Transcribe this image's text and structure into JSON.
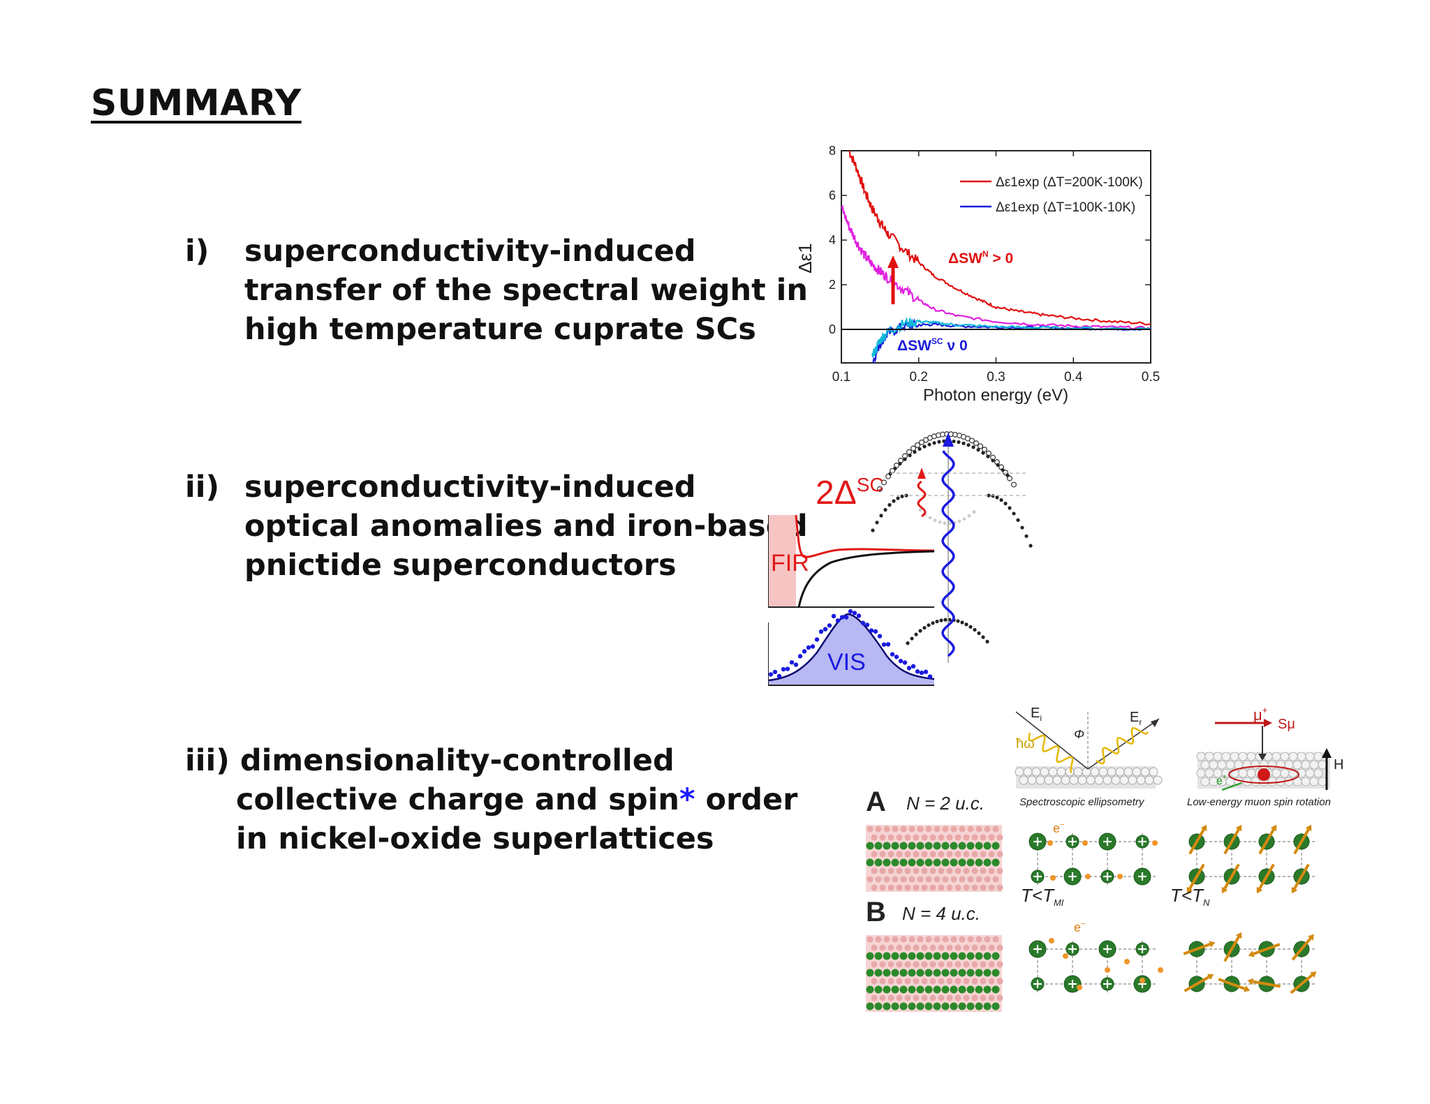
{
  "slide": {
    "title": "SUMMARY",
    "items": [
      {
        "marker": "i)",
        "lines": [
          "superconductivity-induced",
          "transfer of the spectral weight in",
          "high temperature cuprate SCs"
        ]
      },
      {
        "marker": "ii)",
        "lines": [
          "superconductivity-induced",
          "optical anomalies and iron-based",
          "pnictide superconductors"
        ]
      },
      {
        "marker": "iii)",
        "lines": [
          "dimensionality-controlled",
          "collective charge and spin",
          "order",
          "in nickel-oxide superlattices"
        ],
        "footnote_mark": "*"
      }
    ]
  },
  "chart_data": {
    "type": "line",
    "xlabel": "Photon energy (eV)",
    "ylabel": "Δε1",
    "xlim": [
      0.1,
      0.5
    ],
    "ylim": [
      -1.5,
      8
    ],
    "x_ticks": [
      "0.1",
      "0.2",
      "0.3",
      "0.4",
      "0.5"
    ],
    "y_ticks": [
      "0",
      "2",
      "4",
      "6",
      "8"
    ],
    "legend_placement": "top-right",
    "series": [
      {
        "name": "Δε1exp (ΔT=200K-100K)",
        "color": "#e01010",
        "x": [
          0.11,
          0.12,
          0.13,
          0.14,
          0.15,
          0.16,
          0.18,
          0.2,
          0.22,
          0.25,
          0.28,
          0.3,
          0.33,
          0.36,
          0.4,
          0.45,
          0.5
        ],
        "y": [
          8.0,
          7.2,
          6.2,
          5.4,
          4.8,
          4.3,
          3.6,
          3.0,
          2.4,
          1.8,
          1.3,
          1.0,
          0.8,
          0.65,
          0.5,
          0.35,
          0.25
        ]
      },
      {
        "name": "Δε1exp (ΔT=100K-10K)",
        "color": "#1a1adc",
        "x": [
          0.14,
          0.15,
          0.16,
          0.18,
          0.2,
          0.22,
          0.25,
          0.3,
          0.35,
          0.4,
          0.45,
          0.5
        ],
        "y": [
          -1.5,
          -0.6,
          -0.2,
          0.15,
          0.2,
          0.22,
          0.15,
          0.1,
          0.08,
          0.05,
          0.03,
          0.02
        ]
      },
      {
        "color": "#e020e0",
        "x": [
          0.1,
          0.11,
          0.12,
          0.13,
          0.14,
          0.15,
          0.16,
          0.18,
          0.2,
          0.22,
          0.25,
          0.3,
          0.35,
          0.4,
          0.45,
          0.5
        ],
        "y": [
          5.5,
          4.6,
          3.9,
          3.3,
          2.9,
          2.6,
          2.3,
          1.8,
          1.3,
          0.9,
          0.6,
          0.35,
          0.22,
          0.15,
          0.1,
          0.06
        ]
      },
      {
        "color": "#10b8d8",
        "x": [
          0.14,
          0.15,
          0.16,
          0.18,
          0.2,
          0.22,
          0.25,
          0.3,
          0.35,
          0.4,
          0.5
        ],
        "y": [
          -1.2,
          -0.5,
          -0.1,
          0.25,
          0.35,
          0.3,
          0.2,
          0.12,
          0.08,
          0.05,
          0.03
        ]
      }
    ],
    "annotations": [
      {
        "text_main": "ΔSW",
        "text_sup": "N",
        "text_tail": " > 0",
        "color": "#e01010"
      },
      {
        "text_main": "ΔSW",
        "text_sup": "SC",
        "text_tail": " ν 0",
        "color": "#1a1adc"
      }
    ]
  },
  "figure2": {
    "gap_label": "2Δ",
    "gap_sup": "SC",
    "fir_label": "FIR",
    "vis_label": "VIS",
    "colors": {
      "red": "#e01818",
      "blue": "#1a1ae0",
      "fir_fill": "#f7c4c4",
      "vis_fill": "#b8b8f4"
    }
  },
  "figure3": {
    "panel_a": "A",
    "panel_a_label": "N = 2 u.c.",
    "panel_b": "B",
    "panel_b_label": "N = 4 u.c.",
    "ellipsometry_caption": "Spectroscopic ellipsometry",
    "muon_caption": "Low-energy muon spin rotation",
    "e_incident": "E",
    "e_incident_sub": "i",
    "e_reflected": "E",
    "e_reflected_sub": "r",
    "phi": "Φ",
    "hbar_omega": "ħω",
    "muon": "μ",
    "muon_sup": "+",
    "s_mu": "Sμ",
    "field": "H",
    "positron": "e",
    "positron_sup": "+",
    "electron": "e",
    "electron_sup": "−",
    "t_mi": "T<T",
    "t_mi_sub": "MI",
    "t_n": "T<T",
    "t_n_sub": "N"
  }
}
